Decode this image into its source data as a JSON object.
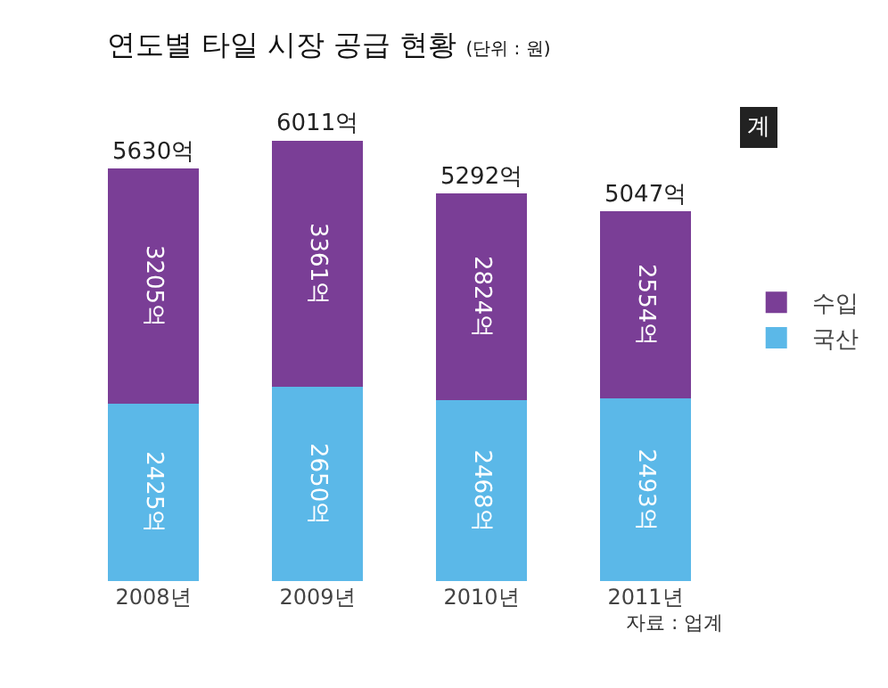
{
  "chart_data": {
    "type": "bar",
    "title": "연도별 타일 시장 공급 현황",
    "subtitle": "(단위 : 원)",
    "categories": [
      "2008년",
      "2009년",
      "2010년",
      "2011년"
    ],
    "stacked": true,
    "series": [
      {
        "name": "국산",
        "color": "#5bb8e8",
        "values": [
          2425,
          2650,
          2468,
          2493
        ],
        "value_labels": [
          "2425억",
          "2650억",
          "2468억",
          "2493억"
        ]
      },
      {
        "name": "수입",
        "color": "#7a3e96",
        "values": [
          3205,
          3361,
          2824,
          2554
        ],
        "value_labels": [
          "3205억",
          "3361억",
          "2824억",
          "2554억"
        ]
      }
    ],
    "totals": [
      "5630억",
      "6011억",
      "5292억",
      "5047억"
    ],
    "annotations": [
      "계",
      "자료 : 업계"
    ],
    "legend": "right",
    "tick_labels": "x",
    "grid": false
  }
}
